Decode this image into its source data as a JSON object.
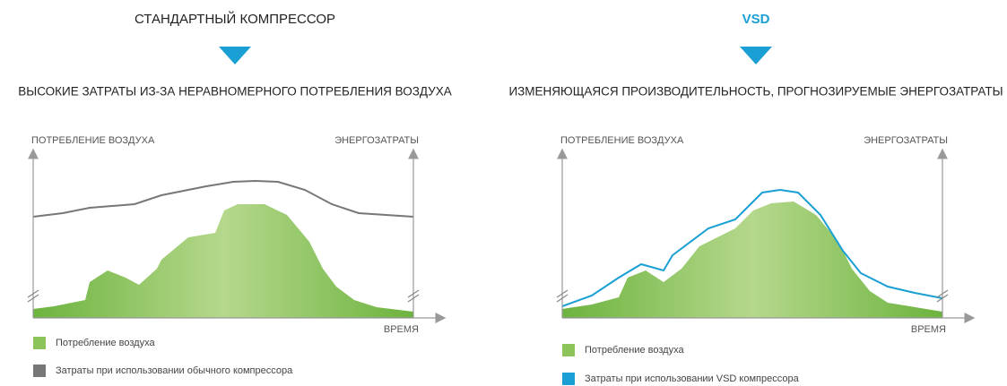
{
  "panels": [
    {
      "title": "СТАНДАРТНЫЙ КОМПРЕССОР",
      "subtitle": "ВЫСОКИЕ ЗАТРАТЫ ИЗ-ЗА НЕРАВНОМЕРНОГО ПОТРЕБЛЕНИЯ ВОЗДУХА",
      "axis_left": "ПОТРЕБЛЕНИЕ ВОЗДУХА",
      "axis_right": "ЭНЕРГОЗАТРАТЫ",
      "x_axis": "ВРЕМЯ",
      "legend": [
        "Потребление воздуха",
        "Затраты при использовании обычного компрессора"
      ]
    },
    {
      "title": "VSD",
      "subtitle": "ИЗМЕНЯЮЩАЯСЯ ПРОИЗВОДИТЕЛЬНОСТЬ, ПРОГНОЗИРУЕМЫЕ ЭНЕРГОЗАТРАТЫ",
      "axis_left": "ПОТРЕБЛЕНИЕ ВОЗДУХА",
      "axis_right": "ЭНЕРГОЗАТРАТЫ",
      "x_axis": "ВРЕМЯ",
      "legend": [
        "Потребление воздуха",
        "Затраты при использовании VSD компрессора"
      ]
    }
  ]
}
